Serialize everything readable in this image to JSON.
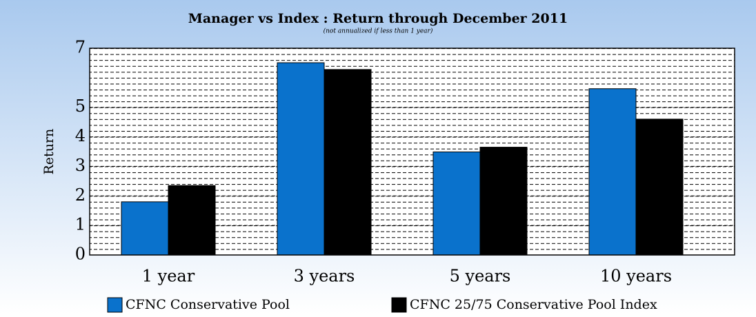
{
  "chart_data": {
    "type": "bar",
    "title": "Manager vs Index : Return through December 2011",
    "subtitle": "(not  annualized if less than 1 year)",
    "y_label": "Return",
    "categories": [
      "1 year",
      "3 years",
      "5 years",
      "10 years"
    ],
    "series": [
      {
        "name": "CFNC Conservative Pool",
        "color": "#0a72cc",
        "values": [
          1.8,
          6.51,
          3.49,
          5.63
        ]
      },
      {
        "name": "CFNC 25/75 Conservative Pool Index",
        "color": "#000000",
        "values": [
          2.35,
          6.28,
          3.65,
          4.6
        ]
      }
    ],
    "ylim": [
      0,
      7
    ],
    "yticks": [
      0,
      1,
      2,
      3,
      4,
      5,
      7
    ],
    "grid": true
  }
}
